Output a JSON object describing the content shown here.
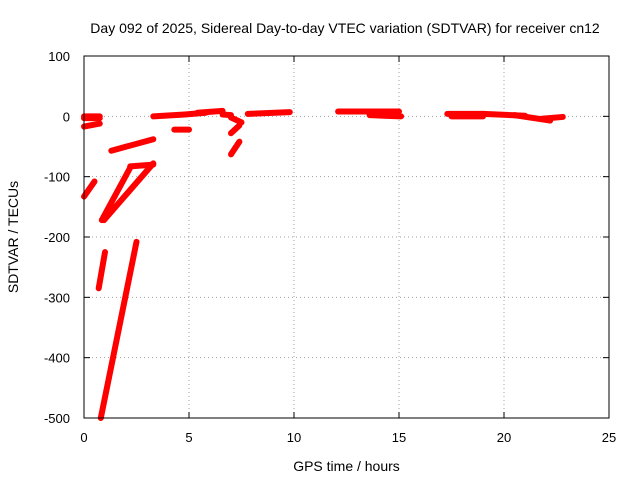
{
  "chart_data": {
    "type": "scatter",
    "title": "Day 092 of 2025, Sidereal Day-to-day VTEC variation (SDTVAR) for receiver cn12",
    "xlabel": "GPS time / hours",
    "ylabel": "SDTVAR / TECUs",
    "xlim": [
      0,
      25
    ],
    "ylim": [
      -500,
      100
    ],
    "xticks": [
      "0",
      "5",
      "10",
      "15",
      "20",
      "25"
    ],
    "yticks": [
      "100",
      "0",
      "-100",
      "-200",
      "-300",
      "-400",
      "-500"
    ],
    "grid": true,
    "series": [
      {
        "name": "SDTVAR",
        "color": "#ff0000",
        "segments": [
          {
            "x": [
              0.0,
              0.5
            ],
            "y": [
              -133,
              -108
            ]
          },
          {
            "x": [
              0.0,
              0.75
            ],
            "y": [
              0,
              0
            ]
          },
          {
            "x": [
              0.0,
              0.75
            ],
            "y": [
              -17,
              -12
            ]
          },
          {
            "x": [
              0.0,
              0.75
            ],
            "y": [
              -3,
              -3
            ]
          },
          {
            "x": [
              0.7,
              1.0
            ],
            "y": [
              -285,
              -225
            ]
          },
          {
            "x": [
              0.8,
              2.5
            ],
            "y": [
              -500,
              -208
            ]
          },
          {
            "x": [
              0.85,
              2.2
            ],
            "y": [
              -172,
              -85
            ]
          },
          {
            "x": [
              0.95,
              3.3
            ],
            "y": [
              -172,
              -78
            ]
          },
          {
            "x": [
              2.2,
              3.3
            ],
            "y": [
              -83,
              -80
            ]
          },
          {
            "x": [
              1.3,
              3.3
            ],
            "y": [
              -57,
              -38
            ]
          },
          {
            "x": [
              3.3,
              4.8
            ],
            "y": [
              0,
              3
            ]
          },
          {
            "x": [
              4.3,
              5.0
            ],
            "y": [
              -22,
              -22
            ]
          },
          {
            "x": [
              4.8,
              5.8
            ],
            "y": [
              3,
              6
            ]
          },
          {
            "x": [
              5.4,
              6.6
            ],
            "y": [
              6,
              9
            ]
          },
          {
            "x": [
              6.6,
              7.0
            ],
            "y": [
              3,
              2
            ]
          },
          {
            "x": [
              7.0,
              7.5
            ],
            "y": [
              -2,
              -10
            ]
          },
          {
            "x": [
              7.0,
              7.4
            ],
            "y": [
              -28,
              -15
            ]
          },
          {
            "x": [
              7.0,
              7.4
            ],
            "y": [
              -63,
              -42
            ]
          },
          {
            "x": [
              7.8,
              9.8
            ],
            "y": [
              4,
              7
            ]
          },
          {
            "x": [
              12.1,
              15.0
            ],
            "y": [
              8,
              8
            ]
          },
          {
            "x": [
              13.6,
              15.1
            ],
            "y": [
              2,
              0
            ]
          },
          {
            "x": [
              17.3,
              19.0
            ],
            "y": [
              4,
              4
            ]
          },
          {
            "x": [
              17.5,
              19.0
            ],
            "y": [
              0,
              0
            ]
          },
          {
            "x": [
              19.0,
              21.0
            ],
            "y": [
              4,
              1
            ]
          },
          {
            "x": [
              20.5,
              22.2
            ],
            "y": [
              2,
              -7
            ]
          },
          {
            "x": [
              21.8,
              22.8
            ],
            "y": [
              -4,
              -1
            ]
          }
        ]
      }
    ]
  }
}
